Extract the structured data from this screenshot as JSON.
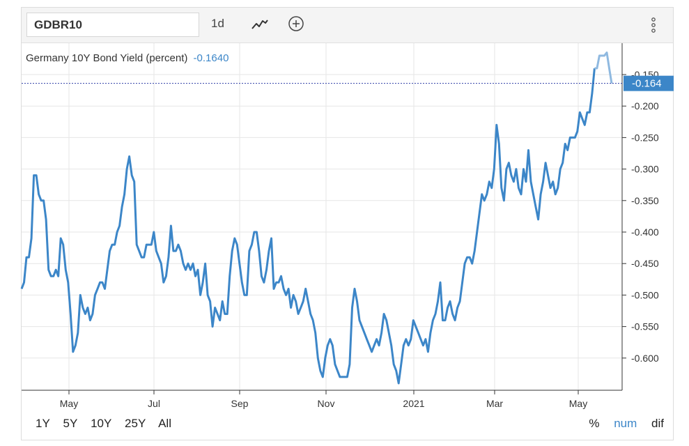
{
  "toolbar": {
    "symbol": "GDBR10",
    "interval": "1d",
    "chart_type_icon": "line-chart-icon",
    "compare_icon": "plus-circle-icon",
    "menu_icon": "vertical-dots-icon"
  },
  "legend": {
    "label": "Germany 10Y Bond Yield (percent)",
    "value": "-0.1640"
  },
  "current_value_label": "-0.164",
  "colors": {
    "line": "#3c86c8",
    "line_highlight": "#8fb9e0",
    "current_badge": "#3c86c8",
    "grid": "#e6e6e6"
  },
  "range_buttons": [
    "1Y",
    "5Y",
    "10Y",
    "25Y",
    "All"
  ],
  "display_modes": [
    "%",
    "num",
    "dif"
  ],
  "active_display_mode": "num",
  "chart_data": {
    "type": "line",
    "title": "Germany 10Y Bond Yield (percent)",
    "x_tick_labels": [
      "May",
      "Jul",
      "Sep",
      "Nov",
      "2021",
      "Mar",
      "May"
    ],
    "y_tick_labels": [
      "-0.150",
      "-0.200",
      "-0.250",
      "-0.300",
      "-0.350",
      "-0.400",
      "-0.450",
      "-0.500",
      "-0.550",
      "-0.600"
    ],
    "y_ticks": [
      -0.15,
      -0.2,
      -0.25,
      -0.3,
      -0.35,
      -0.4,
      -0.45,
      -0.5,
      -0.55,
      -0.6
    ],
    "ylim": [
      -0.65,
      -0.1
    ],
    "grid": true,
    "current_value": -0.164,
    "series": [
      {
        "values": [
          -0.49,
          -0.48,
          -0.44,
          -0.44,
          -0.41,
          -0.31,
          -0.31,
          -0.34,
          -0.35,
          -0.35,
          -0.38,
          -0.46,
          -0.47,
          -0.47,
          -0.46,
          -0.47,
          -0.41,
          -0.42,
          -0.46,
          -0.48,
          -0.53,
          -0.59,
          -0.58,
          -0.56,
          -0.5,
          -0.52,
          -0.53,
          -0.52,
          -0.54,
          -0.53,
          -0.5,
          -0.49,
          -0.48,
          -0.48,
          -0.49,
          -0.46,
          -0.43,
          -0.42,
          -0.42,
          -0.4,
          -0.39,
          -0.36,
          -0.34,
          -0.3,
          -0.28,
          -0.31,
          -0.32,
          -0.42,
          -0.43,
          -0.44,
          -0.44,
          -0.42,
          -0.42,
          -0.42,
          -0.4,
          -0.43,
          -0.44,
          -0.45,
          -0.48,
          -0.47,
          -0.44,
          -0.39,
          -0.43,
          -0.43,
          -0.42,
          -0.43,
          -0.45,
          -0.46,
          -0.45,
          -0.46,
          -0.45,
          -0.47,
          -0.46,
          -0.5,
          -0.48,
          -0.45,
          -0.5,
          -0.51,
          -0.55,
          -0.52,
          -0.53,
          -0.54,
          -0.51,
          -0.53,
          -0.53,
          -0.47,
          -0.43,
          -0.41,
          -0.42,
          -0.45,
          -0.48,
          -0.5,
          -0.5,
          -0.43,
          -0.42,
          -0.4,
          -0.4,
          -0.43,
          -0.47,
          -0.48,
          -0.46,
          -0.43,
          -0.41,
          -0.49,
          -0.48,
          -0.48,
          -0.47,
          -0.49,
          -0.5,
          -0.49,
          -0.52,
          -0.5,
          -0.51,
          -0.53,
          -0.52,
          -0.51,
          -0.49,
          -0.51,
          -0.53,
          -0.54,
          -0.56,
          -0.6,
          -0.62,
          -0.63,
          -0.6,
          -0.58,
          -0.57,
          -0.58,
          -0.61,
          -0.62,
          -0.63,
          -0.63,
          -0.63,
          -0.63,
          -0.61,
          -0.52,
          -0.49,
          -0.51,
          -0.54,
          -0.55,
          -0.56,
          -0.57,
          -0.58,
          -0.59,
          -0.58,
          -0.57,
          -0.58,
          -0.56,
          -0.53,
          -0.54,
          -0.56,
          -0.58,
          -0.61,
          -0.62,
          -0.64,
          -0.61,
          -0.58,
          -0.57,
          -0.58,
          -0.57,
          -0.54,
          -0.55,
          -0.56,
          -0.57,
          -0.58,
          -0.57,
          -0.59,
          -0.56,
          -0.54,
          -0.53,
          -0.51,
          -0.48,
          -0.54,
          -0.54,
          -0.52,
          -0.51,
          -0.53,
          -0.54,
          -0.52,
          -0.51,
          -0.48,
          -0.45,
          -0.44,
          -0.44,
          -0.45,
          -0.43,
          -0.4,
          -0.37,
          -0.34,
          -0.35,
          -0.34,
          -0.32,
          -0.33,
          -0.3,
          -0.23,
          -0.26,
          -0.33,
          -0.35,
          -0.3,
          -0.29,
          -0.31,
          -0.32,
          -0.3,
          -0.33,
          -0.34,
          -0.3,
          -0.32,
          -0.27,
          -0.32,
          -0.34,
          -0.36,
          -0.38,
          -0.34,
          -0.32,
          -0.29,
          -0.31,
          -0.33,
          -0.32,
          -0.34,
          -0.33,
          -0.3,
          -0.29,
          -0.26,
          -0.27,
          -0.25,
          -0.25,
          -0.25,
          -0.24,
          -0.21,
          -0.22,
          -0.23,
          -0.21,
          -0.21,
          -0.18,
          -0.14,
          -0.14,
          -0.12,
          -0.12,
          -0.12,
          -0.115,
          -0.14,
          -0.164
        ]
      }
    ]
  }
}
